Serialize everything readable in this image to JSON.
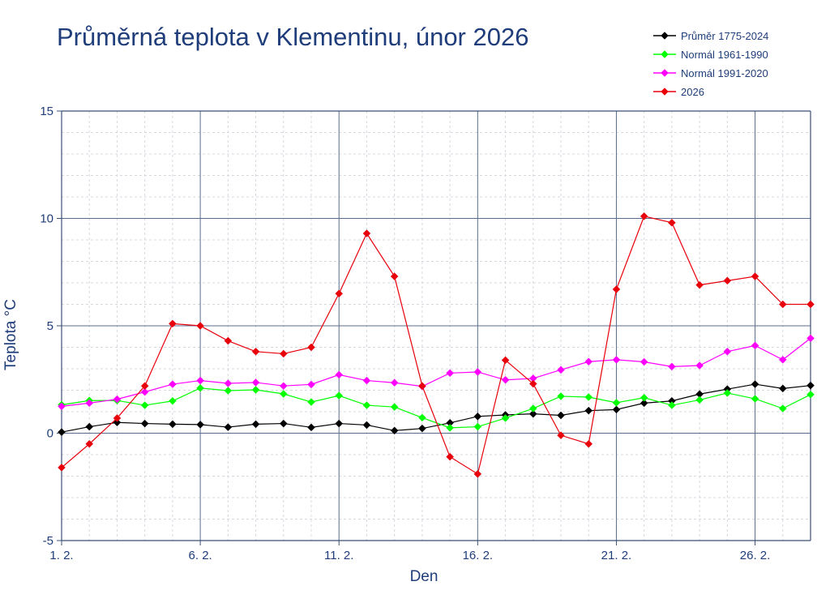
{
  "chart_data": {
    "type": "line",
    "title": "Průměrná teplota v Klementinu, únor 2026",
    "xlabel": "Den",
    "ylabel": "Teplota  °C",
    "x": [
      1,
      2,
      3,
      4,
      5,
      6,
      7,
      8,
      9,
      10,
      11,
      12,
      13,
      14,
      15,
      16,
      17,
      18,
      19,
      20,
      21,
      22,
      23,
      24,
      25,
      26,
      27,
      28
    ],
    "xlim": [
      1,
      28
    ],
    "ylim": [
      -5,
      15
    ],
    "yticks": [
      -5,
      0,
      5,
      10,
      15
    ],
    "ytick_labels": [
      "-5",
      "0",
      "5",
      "10",
      "15"
    ],
    "xticks": [
      1,
      6,
      11,
      16,
      21,
      26
    ],
    "xtick_labels": [
      "1. 2.",
      "6. 2.",
      "11. 2.",
      "16. 2.",
      "21. 2.",
      "26. 2."
    ],
    "grid": true,
    "legend_position": "top-right",
    "series": [
      {
        "name": "Průměr 1775-2024",
        "color": "#000000",
        "values": [
          0.05,
          0.3,
          0.5,
          0.45,
          0.42,
          0.4,
          0.28,
          0.42,
          0.45,
          0.27,
          0.45,
          0.38,
          0.12,
          0.22,
          0.48,
          0.78,
          0.85,
          0.9,
          0.83,
          1.05,
          1.1,
          1.4,
          1.5,
          1.82,
          2.05,
          2.28,
          2.08,
          2.22
        ]
      },
      {
        "name": "Normál 1961-1990",
        "color": "#00ff00",
        "values": [
          1.32,
          1.52,
          1.52,
          1.3,
          1.5,
          2.1,
          1.98,
          2.02,
          1.83,
          1.45,
          1.75,
          1.3,
          1.22,
          0.72,
          0.25,
          0.3,
          0.7,
          1.15,
          1.72,
          1.68,
          1.42,
          1.65,
          1.3,
          1.55,
          1.87,
          1.6,
          1.15,
          1.8
        ]
      },
      {
        "name": "Normál 1991-2020",
        "color": "#ff00ff",
        "values": [
          1.25,
          1.4,
          1.58,
          1.92,
          2.28,
          2.45,
          2.32,
          2.36,
          2.2,
          2.27,
          2.72,
          2.45,
          2.35,
          2.18,
          2.8,
          2.85,
          2.48,
          2.55,
          2.95,
          3.33,
          3.42,
          3.32,
          3.1,
          3.15,
          3.8,
          4.08,
          3.42,
          4.42
        ]
      },
      {
        "name": "2026",
        "color": "#e8000b",
        "values": [
          -1.6,
          -0.5,
          0.7,
          2.2,
          5.1,
          5.0,
          4.3,
          3.8,
          3.7,
          4.0,
          6.5,
          9.3,
          7.3,
          2.2,
          -1.1,
          -1.9,
          3.4,
          2.3,
          -0.1,
          -0.5,
          6.7,
          10.1,
          9.8,
          6.9,
          7.1,
          7.3,
          6.0,
          6.0
        ]
      }
    ]
  }
}
